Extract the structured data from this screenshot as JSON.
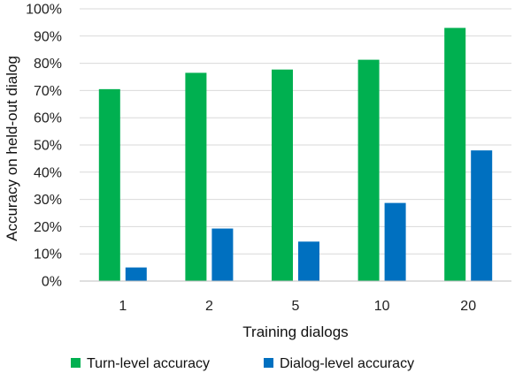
{
  "chart_data": {
    "type": "bar",
    "categories": [
      "1",
      "2",
      "5",
      "10",
      "20"
    ],
    "series": [
      {
        "name": "Turn-level accuracy",
        "values": [
          70.5,
          76.5,
          77.7,
          81.3,
          93.0
        ],
        "color": "#00b050"
      },
      {
        "name": "Dialog-level accuracy",
        "values": [
          5.0,
          19.3,
          14.5,
          28.7,
          48.0
        ],
        "color": "#0070c0"
      }
    ],
    "xlabel": "Training dialogs",
    "ylabel": "Accuracy on held-out dialog",
    "ylim": [
      0,
      100
    ],
    "ytick_step": 10,
    "ytick_format": "percent",
    "ytick_labels": [
      "0%",
      "10%",
      "20%",
      "30%",
      "40%",
      "50%",
      "60%",
      "70%",
      "80%",
      "90%",
      "100%"
    ],
    "grid": true,
    "legend_position": "bottom"
  }
}
